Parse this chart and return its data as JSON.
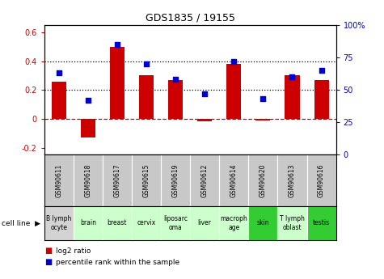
{
  "title": "GDS1835 / 19155",
  "gsm_labels": [
    "GSM90611",
    "GSM90618",
    "GSM90617",
    "GSM90615",
    "GSM90619",
    "GSM90612",
    "GSM90614",
    "GSM90620",
    "GSM90613",
    "GSM90616"
  ],
  "cell_lines": [
    "B lymph\nocyte",
    "brain",
    "breast",
    "cervix",
    "liposarc\noma",
    "liver",
    "macroph\nage",
    "skin",
    "T lymph\noblast",
    "testis"
  ],
  "cell_bg_colors": [
    "#d3d3d3",
    "#ccffcc",
    "#ccffcc",
    "#ccffcc",
    "#ccffcc",
    "#ccffcc",
    "#ccffcc",
    "#33cc33",
    "#ccffcc",
    "#33cc33"
  ],
  "log2_ratio": [
    0.26,
    -0.13,
    0.5,
    0.3,
    0.27,
    -0.02,
    0.38,
    -0.01,
    0.3,
    0.27
  ],
  "percentile_rank": [
    63,
    42,
    85,
    70,
    58,
    47,
    72,
    43,
    60,
    65
  ],
  "bar_color": "#cc0000",
  "dot_color": "#0000cc",
  "ylim_left": [
    -0.25,
    0.65
  ],
  "ylim_right": [
    0,
    100
  ],
  "yticks_left": [
    -0.2,
    0.0,
    0.2,
    0.4,
    0.6
  ],
  "yticks_right": [
    0,
    25,
    50,
    75,
    100
  ],
  "yticklabels_right": [
    "0",
    "25",
    "50",
    "75",
    "100%"
  ],
  "hlines_dotted": [
    0.2,
    0.4
  ],
  "hline_zero_color": "#cc0000",
  "bar_width": 0.5,
  "gsm_bg_color": "#c8c8c8",
  "legend_items": [
    "log2 ratio",
    "percentile rank within the sample"
  ],
  "legend_colors": [
    "#cc0000",
    "#0000cc"
  ]
}
